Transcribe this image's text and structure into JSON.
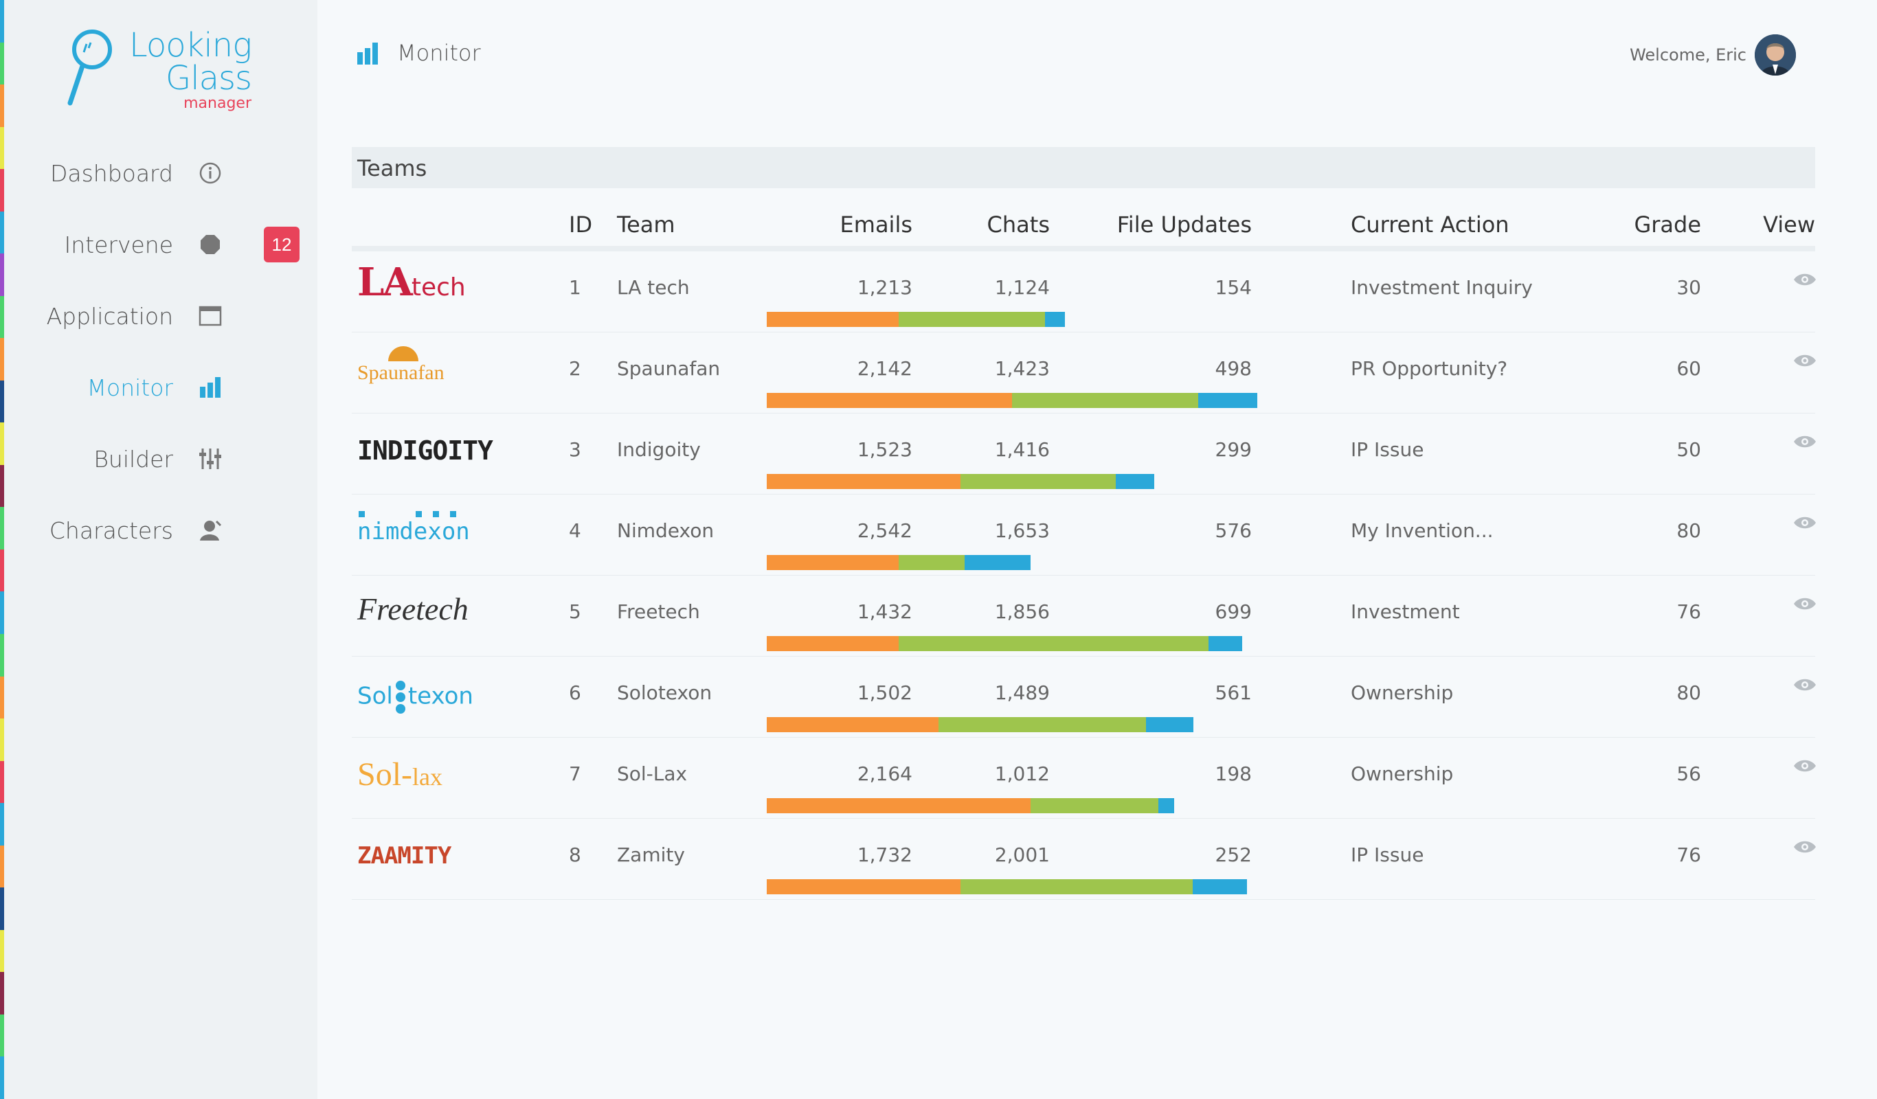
{
  "app": {
    "logo_line1": "Looking",
    "logo_line2": "Glass",
    "logo_sub": "manager",
    "accent": "#2aa8d9",
    "alert": "#e8435a"
  },
  "sidebar": {
    "items": [
      {
        "label": "Dashboard",
        "icon": "info-icon"
      },
      {
        "label": "Intervene",
        "icon": "stop-icon",
        "badge": "12"
      },
      {
        "label": "Application",
        "icon": "window-icon"
      },
      {
        "label": "Monitor",
        "icon": "bar-chart-icon",
        "active": true
      },
      {
        "label": "Builder",
        "icon": "sliders-icon"
      },
      {
        "label": "Characters",
        "icon": "user-icon"
      }
    ]
  },
  "header": {
    "title": "Monitor",
    "welcome": "Welcome, Eric"
  },
  "panel": {
    "title": "Teams",
    "columns": {
      "id": "ID",
      "team": "Team",
      "emails": "Emails",
      "chats": "Chats",
      "file_updates": "File Updates",
      "current_action": "Current Action",
      "grade": "Grade",
      "view": "View"
    },
    "bar_colors": {
      "emails": "#f7943a",
      "chats": "#9ec54d",
      "file_updates": "#2aa8d9"
    },
    "rows": [
      {
        "logo": "LAtech",
        "logo_a": "LA",
        "logo_b": "tech",
        "id": "1",
        "team": "LA tech",
        "emails": "1,213",
        "chats": "1,124",
        "file_updates": "154",
        "action": "Investment Inquiry",
        "grade": "30",
        "bar": [
          0.269,
          0.298,
          0.041
        ]
      },
      {
        "logo": "Spaunafan",
        "id": "2",
        "team": "Spaunafan",
        "emails": "2,142",
        "chats": "1,423",
        "file_updates": "498",
        "action": "PR Opportunity?",
        "grade": "60",
        "bar": [
          0.5,
          0.38,
          0.12
        ]
      },
      {
        "logo": "INDIGOITY",
        "id": "3",
        "team": "Indigoity",
        "emails": "1,523",
        "chats": "1,416",
        "file_updates": "299",
        "action": "IP Issue",
        "grade": "50",
        "bar": [
          0.395,
          0.317,
          0.078
        ]
      },
      {
        "logo": "nimdexon",
        "id": "4",
        "team": "Nimdexon",
        "emails": "2,542",
        "chats": "1,653",
        "file_updates": "576",
        "action": "My Invention...",
        "grade": "80",
        "bar": [
          0.269,
          0.135,
          0.135
        ]
      },
      {
        "logo": "Freetech",
        "id": "5",
        "team": "Freetech",
        "emails": "1,432",
        "chats": "1,856",
        "file_updates": "699",
        "action": "Investment",
        "grade": "76",
        "bar": [
          0.269,
          0.632,
          0.068
        ]
      },
      {
        "logo": "Solotexon",
        "logo_a": "Sol",
        "logo_b": "texon",
        "id": "6",
        "team": "Solotexon",
        "emails": "1,502",
        "chats": "1,489",
        "file_updates": "561",
        "action": "Ownership",
        "grade": "80",
        "bar": [
          0.35,
          0.423,
          0.097
        ]
      },
      {
        "logo": "Sol-lax",
        "logo_a": "Sol-",
        "logo_b": "lax",
        "id": "7",
        "team": "Sol-Lax",
        "emails": "2,164",
        "chats": "1,012",
        "file_updates": "198",
        "action": "Ownership",
        "grade": "56",
        "bar": [
          0.538,
          0.26,
          0.032
        ]
      },
      {
        "logo": "ZAAMITY",
        "id": "8",
        "team": "Zamity",
        "emails": "1,732",
        "chats": "2,001",
        "file_updates": "252",
        "action": "IP Issue",
        "grade": "76",
        "bar": [
          0.395,
          0.474,
          0.111
        ]
      }
    ]
  }
}
